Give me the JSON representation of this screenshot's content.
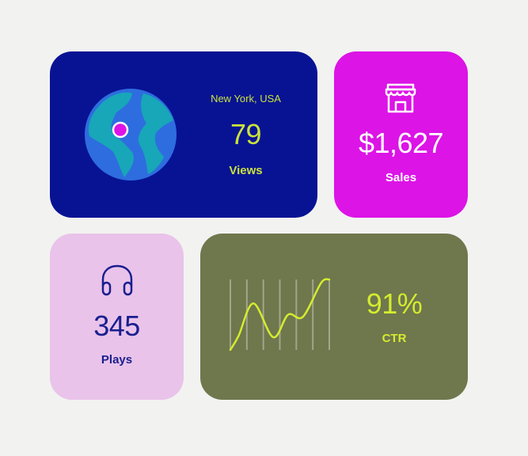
{
  "views_card": {
    "location": "New York, USA",
    "value": "79",
    "label": "Views",
    "icon": "globe-icon",
    "colors": {
      "background": "#081394",
      "text": "#c9e33a",
      "pin": "#dc14e6"
    }
  },
  "sales_card": {
    "value": "$1,627",
    "label": "Sales",
    "icon": "store-icon",
    "colors": {
      "background": "#dc14e6",
      "text": "#ffffff"
    }
  },
  "plays_card": {
    "value": "345",
    "label": "Plays",
    "icon": "headphones-icon",
    "colors": {
      "background": "#e9c3ea",
      "text": "#1a1f8f"
    }
  },
  "ctr_card": {
    "value": "91%",
    "label": "CTR",
    "colors": {
      "background": "#6f774d",
      "text": "#d4ec2e"
    }
  },
  "chart_data": {
    "type": "line",
    "x": [
      0,
      0.5,
      1.4,
      2.6,
      3.5,
      4.4,
      5.5,
      6
    ],
    "y": [
      0,
      0.2,
      0.66,
      0.18,
      0.5,
      0.47,
      0.95,
      1
    ],
    "grid": "vertical",
    "xlim": [
      0,
      6
    ],
    "ylim": [
      0,
      1
    ]
  }
}
